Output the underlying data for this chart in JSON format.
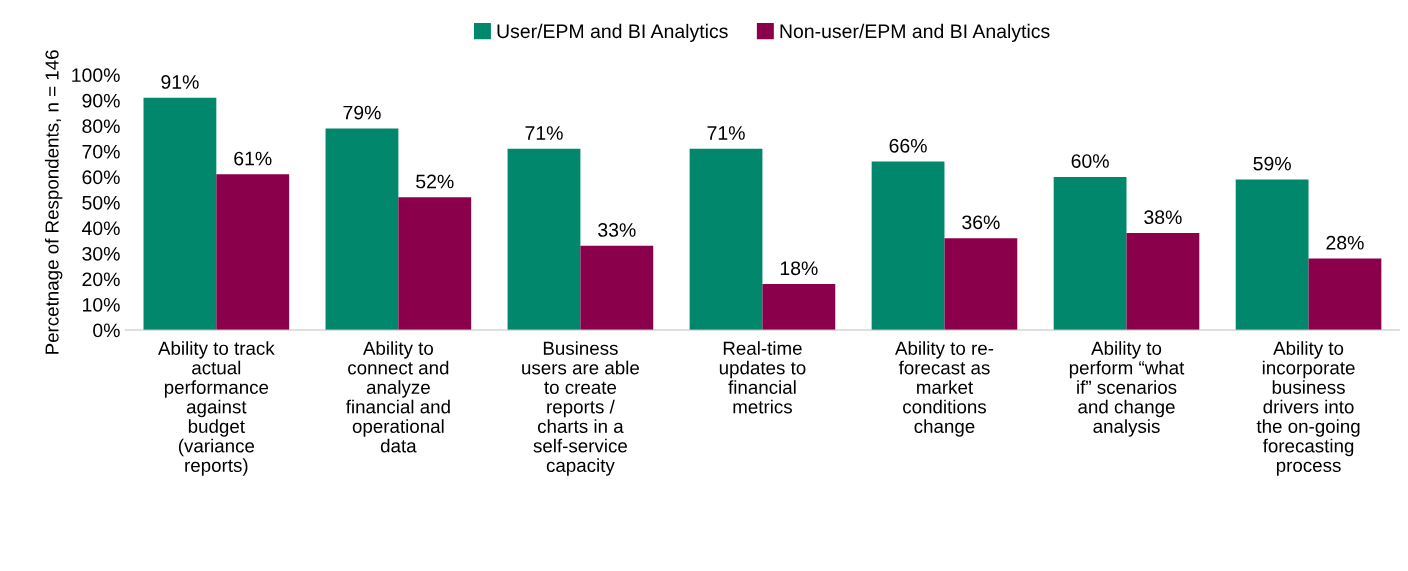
{
  "chart_data": {
    "type": "bar",
    "ylabel": "Percetnage of Respondents, n = 146",
    "categories": [
      "Ability to track\nactual\nperformance\nagainst\nbudget\n(variance\nreports)",
      "Ability to\nconnect and\nanalyze\nfinancial and\noperational\ndata",
      "Business\nusers are able\nto create\nreports /\ncharts in a\nself-service\ncapacity",
      "Real-time\nupdates to\nfinancial\nmetrics",
      "Ability to re-\nforecast as\nmarket\nconditions\nchange",
      "Ability to\nperform “what\nif” scenarios\nand change\nanalysis",
      "Ability to\nincorporate\nbusiness\ndrivers into\nthe on-going\nforecasting\nprocess"
    ],
    "series": [
      {
        "name": "User/EPM and BI Analytics",
        "color": "#00876c",
        "values": [
          91,
          79,
          71,
          71,
          66,
          60,
          59
        ],
        "value_labels": [
          "91%",
          "79%",
          "71%",
          "71%",
          "66%",
          "60%",
          "59%"
        ]
      },
      {
        "name": "Non-user/EPM and BI Analytics",
        "color": "#8b004b",
        "values": [
          61,
          52,
          33,
          18,
          36,
          38,
          28
        ],
        "value_labels": [
          "61%",
          "52%",
          "33%",
          "18%",
          "36%",
          "38%",
          "28%"
        ]
      }
    ],
    "ylim": [
      0,
      100
    ],
    "yticks": [
      {
        "value": 0,
        "label": "0%"
      },
      {
        "value": 10,
        "label": "10%"
      },
      {
        "value": 20,
        "label": "20%"
      },
      {
        "value": 30,
        "label": "30%"
      },
      {
        "value": 40,
        "label": "40%"
      },
      {
        "value": 50,
        "label": "50%"
      },
      {
        "value": 60,
        "label": "60%"
      },
      {
        "value": 70,
        "label": "70%"
      },
      {
        "value": 80,
        "label": "80%"
      },
      {
        "value": 90,
        "label": "90%"
      },
      {
        "value": 100,
        "label": "100%"
      }
    ],
    "grid": false,
    "legend": "top"
  }
}
